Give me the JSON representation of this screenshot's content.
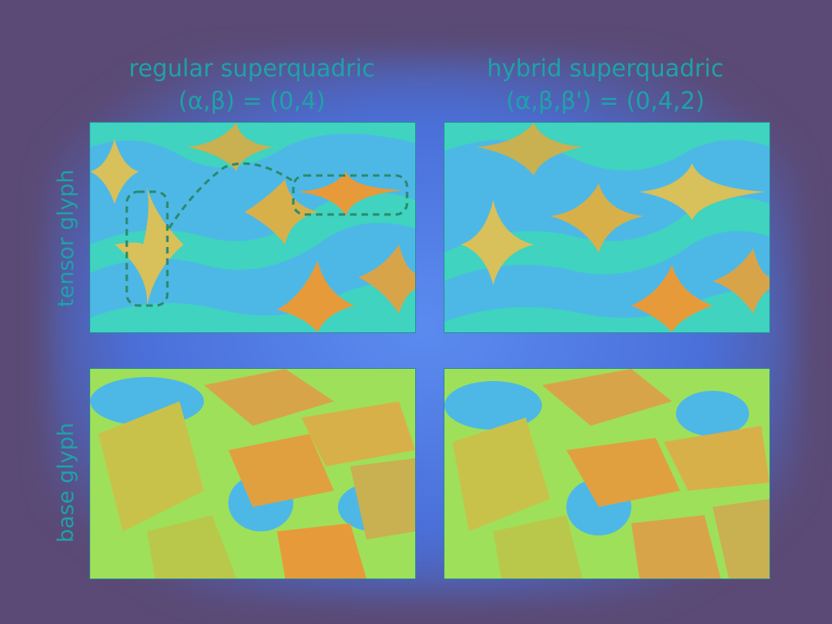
{
  "columns": [
    {
      "title": "regular superquadric",
      "params": "(α,β) = (0,4)"
    },
    {
      "title": "hybrid superquadric",
      "params": "(α,β,β') = (0,4,2)"
    }
  ],
  "rows": [
    {
      "label": "tensor glyph"
    },
    {
      "label": "base glyph"
    }
  ],
  "colors": {
    "background": "#5b4a75",
    "teal": "#3fd3c0",
    "yellow": "#d8e04a",
    "orange": "#e79a3a",
    "text": "#1ea2a8"
  }
}
